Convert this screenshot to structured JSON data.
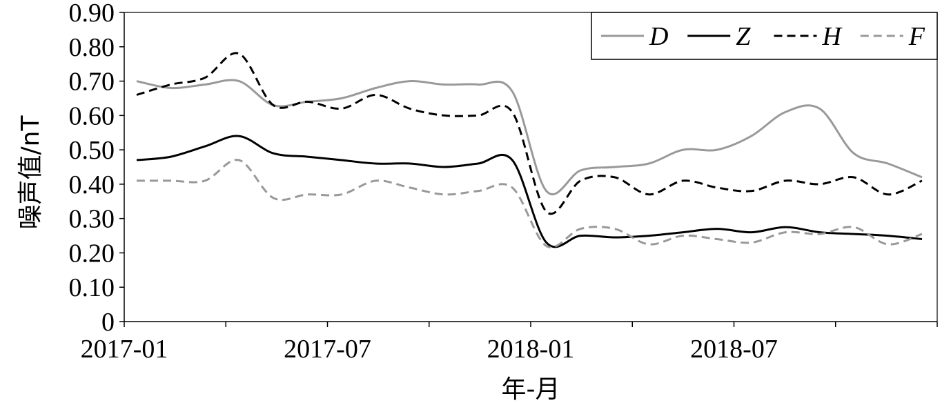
{
  "chart_data": {
    "type": "line",
    "title": "",
    "xlabel": "年-月",
    "ylabel": "噪声值/nT",
    "ylim": [
      0,
      0.9
    ],
    "yticks": [
      "0",
      "0.10",
      "0.20",
      "0.30",
      "0.40",
      "0.50",
      "0.60",
      "0.70",
      "0.80",
      "0.90"
    ],
    "x": [
      "2017-01",
      "2017-02",
      "2017-03",
      "2017-04",
      "2017-05",
      "2017-06",
      "2017-07",
      "2017-08",
      "2017-09",
      "2017-10",
      "2017-11",
      "2017-12",
      "2018-01",
      "2018-02",
      "2018-03",
      "2018-04",
      "2018-05",
      "2018-06",
      "2018-07",
      "2018-08",
      "2018-09",
      "2018-10",
      "2018-11",
      "2018-12"
    ],
    "xtick_labels": [
      "2017-01",
      "2017-07",
      "2018-01",
      "2018-07"
    ],
    "grid": false,
    "legend": "top-right",
    "series": [
      {
        "name": "D",
        "color": "#999999",
        "dash": "solid",
        "values": [
          0.7,
          0.68,
          0.69,
          0.7,
          0.63,
          0.64,
          0.65,
          0.68,
          0.7,
          0.69,
          0.69,
          0.67,
          0.38,
          0.44,
          0.45,
          0.46,
          0.5,
          0.5,
          0.54,
          0.61,
          0.62,
          0.49,
          0.46,
          0.42
        ]
      },
      {
        "name": "Z",
        "color": "#000000",
        "dash": "solid",
        "values": [
          0.47,
          0.48,
          0.51,
          0.54,
          0.49,
          0.48,
          0.47,
          0.46,
          0.46,
          0.45,
          0.46,
          0.47,
          0.23,
          0.25,
          0.245,
          0.25,
          0.26,
          0.27,
          0.26,
          0.275,
          0.26,
          0.255,
          0.25,
          0.24
        ]
      },
      {
        "name": "H",
        "color": "#000000",
        "dash": "dashed",
        "values": [
          0.66,
          0.69,
          0.71,
          0.78,
          0.63,
          0.64,
          0.62,
          0.66,
          0.62,
          0.6,
          0.6,
          0.61,
          0.32,
          0.41,
          0.42,
          0.37,
          0.41,
          0.39,
          0.38,
          0.41,
          0.4,
          0.42,
          0.37,
          0.41
        ]
      },
      {
        "name": "F",
        "color": "#999999",
        "dash": "dashed",
        "values": [
          0.41,
          0.41,
          0.41,
          0.47,
          0.36,
          0.37,
          0.37,
          0.41,
          0.39,
          0.37,
          0.38,
          0.39,
          0.22,
          0.27,
          0.27,
          0.225,
          0.25,
          0.24,
          0.23,
          0.26,
          0.255,
          0.275,
          0.225,
          0.255
        ]
      }
    ]
  }
}
